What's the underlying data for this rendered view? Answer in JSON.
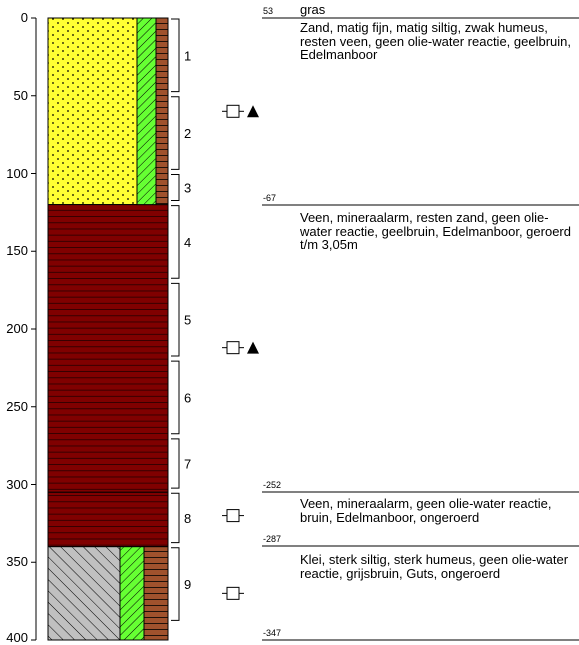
{
  "depth_axis": {
    "ticks": [
      0,
      50,
      100,
      150,
      200,
      250,
      300,
      350,
      400
    ],
    "range": [
      0,
      400
    ],
    "unit": "cm"
  },
  "colors": {
    "sand": "#ffff33",
    "peat": "#800000",
    "clay": "#c0c0c0",
    "green_hatch": "#66ff33",
    "brown_col": "#a0522d"
  },
  "layers": [
    {
      "id": "zand",
      "from": 0,
      "to": 120,
      "material": "sand"
    },
    {
      "id": "veen-1",
      "from": 120,
      "to": 305,
      "material": "peat"
    },
    {
      "id": "veen-2",
      "from": 305,
      "to": 340,
      "material": "peat"
    },
    {
      "id": "klei",
      "from": 340,
      "to": 400,
      "material": "clay"
    }
  ],
  "side_columns": [
    {
      "from": 0,
      "to": 120,
      "pattern": "green-hatch-brown"
    },
    {
      "from": 340,
      "to": 400,
      "pattern": "green-hatch-brown"
    }
  ],
  "samples": [
    {
      "label": "1",
      "from": 0,
      "to": 48
    },
    {
      "label": "2",
      "from": 50,
      "to": 98
    },
    {
      "label": "3",
      "from": 100,
      "to": 118
    },
    {
      "label": "4",
      "from": 120,
      "to": 168
    },
    {
      "label": "5",
      "from": 170,
      "to": 218
    },
    {
      "label": "6",
      "from": 220,
      "to": 268
    },
    {
      "label": "7",
      "from": 270,
      "to": 303
    },
    {
      "label": "8",
      "from": 305,
      "to": 338
    },
    {
      "label": "9",
      "from": 340,
      "to": 388
    }
  ],
  "markers": [
    {
      "depth": 60,
      "triangle": true
    },
    {
      "depth": 212,
      "triangle": true
    },
    {
      "depth": 320,
      "triangle": false
    },
    {
      "depth": 370,
      "triangle": false
    }
  ],
  "descriptions": [
    {
      "level": "53",
      "top_text": "gras",
      "text": "Zand, matig fijn, matig siltig, zwak humeus, resten veen, geen olie-water reactie, geelbruin, Edelmanboor"
    },
    {
      "level": "-67",
      "text": "Veen, mineraalarm, resten zand, geen olie-water reactie, geelbruin, Edelmanboor, geroerd t/m 3,05m"
    },
    {
      "level": "-252",
      "text": "Veen, mineraalarm, geen olie-water reactie, bruin, Edelmanboor, ongeroerd"
    },
    {
      "level": "-287",
      "text": "Klei, sterk siltig, sterk humeus, geen olie-water reactie, grijsbruin, Guts, ongeroerd"
    },
    {
      "level": "-347",
      "text": ""
    }
  ]
}
